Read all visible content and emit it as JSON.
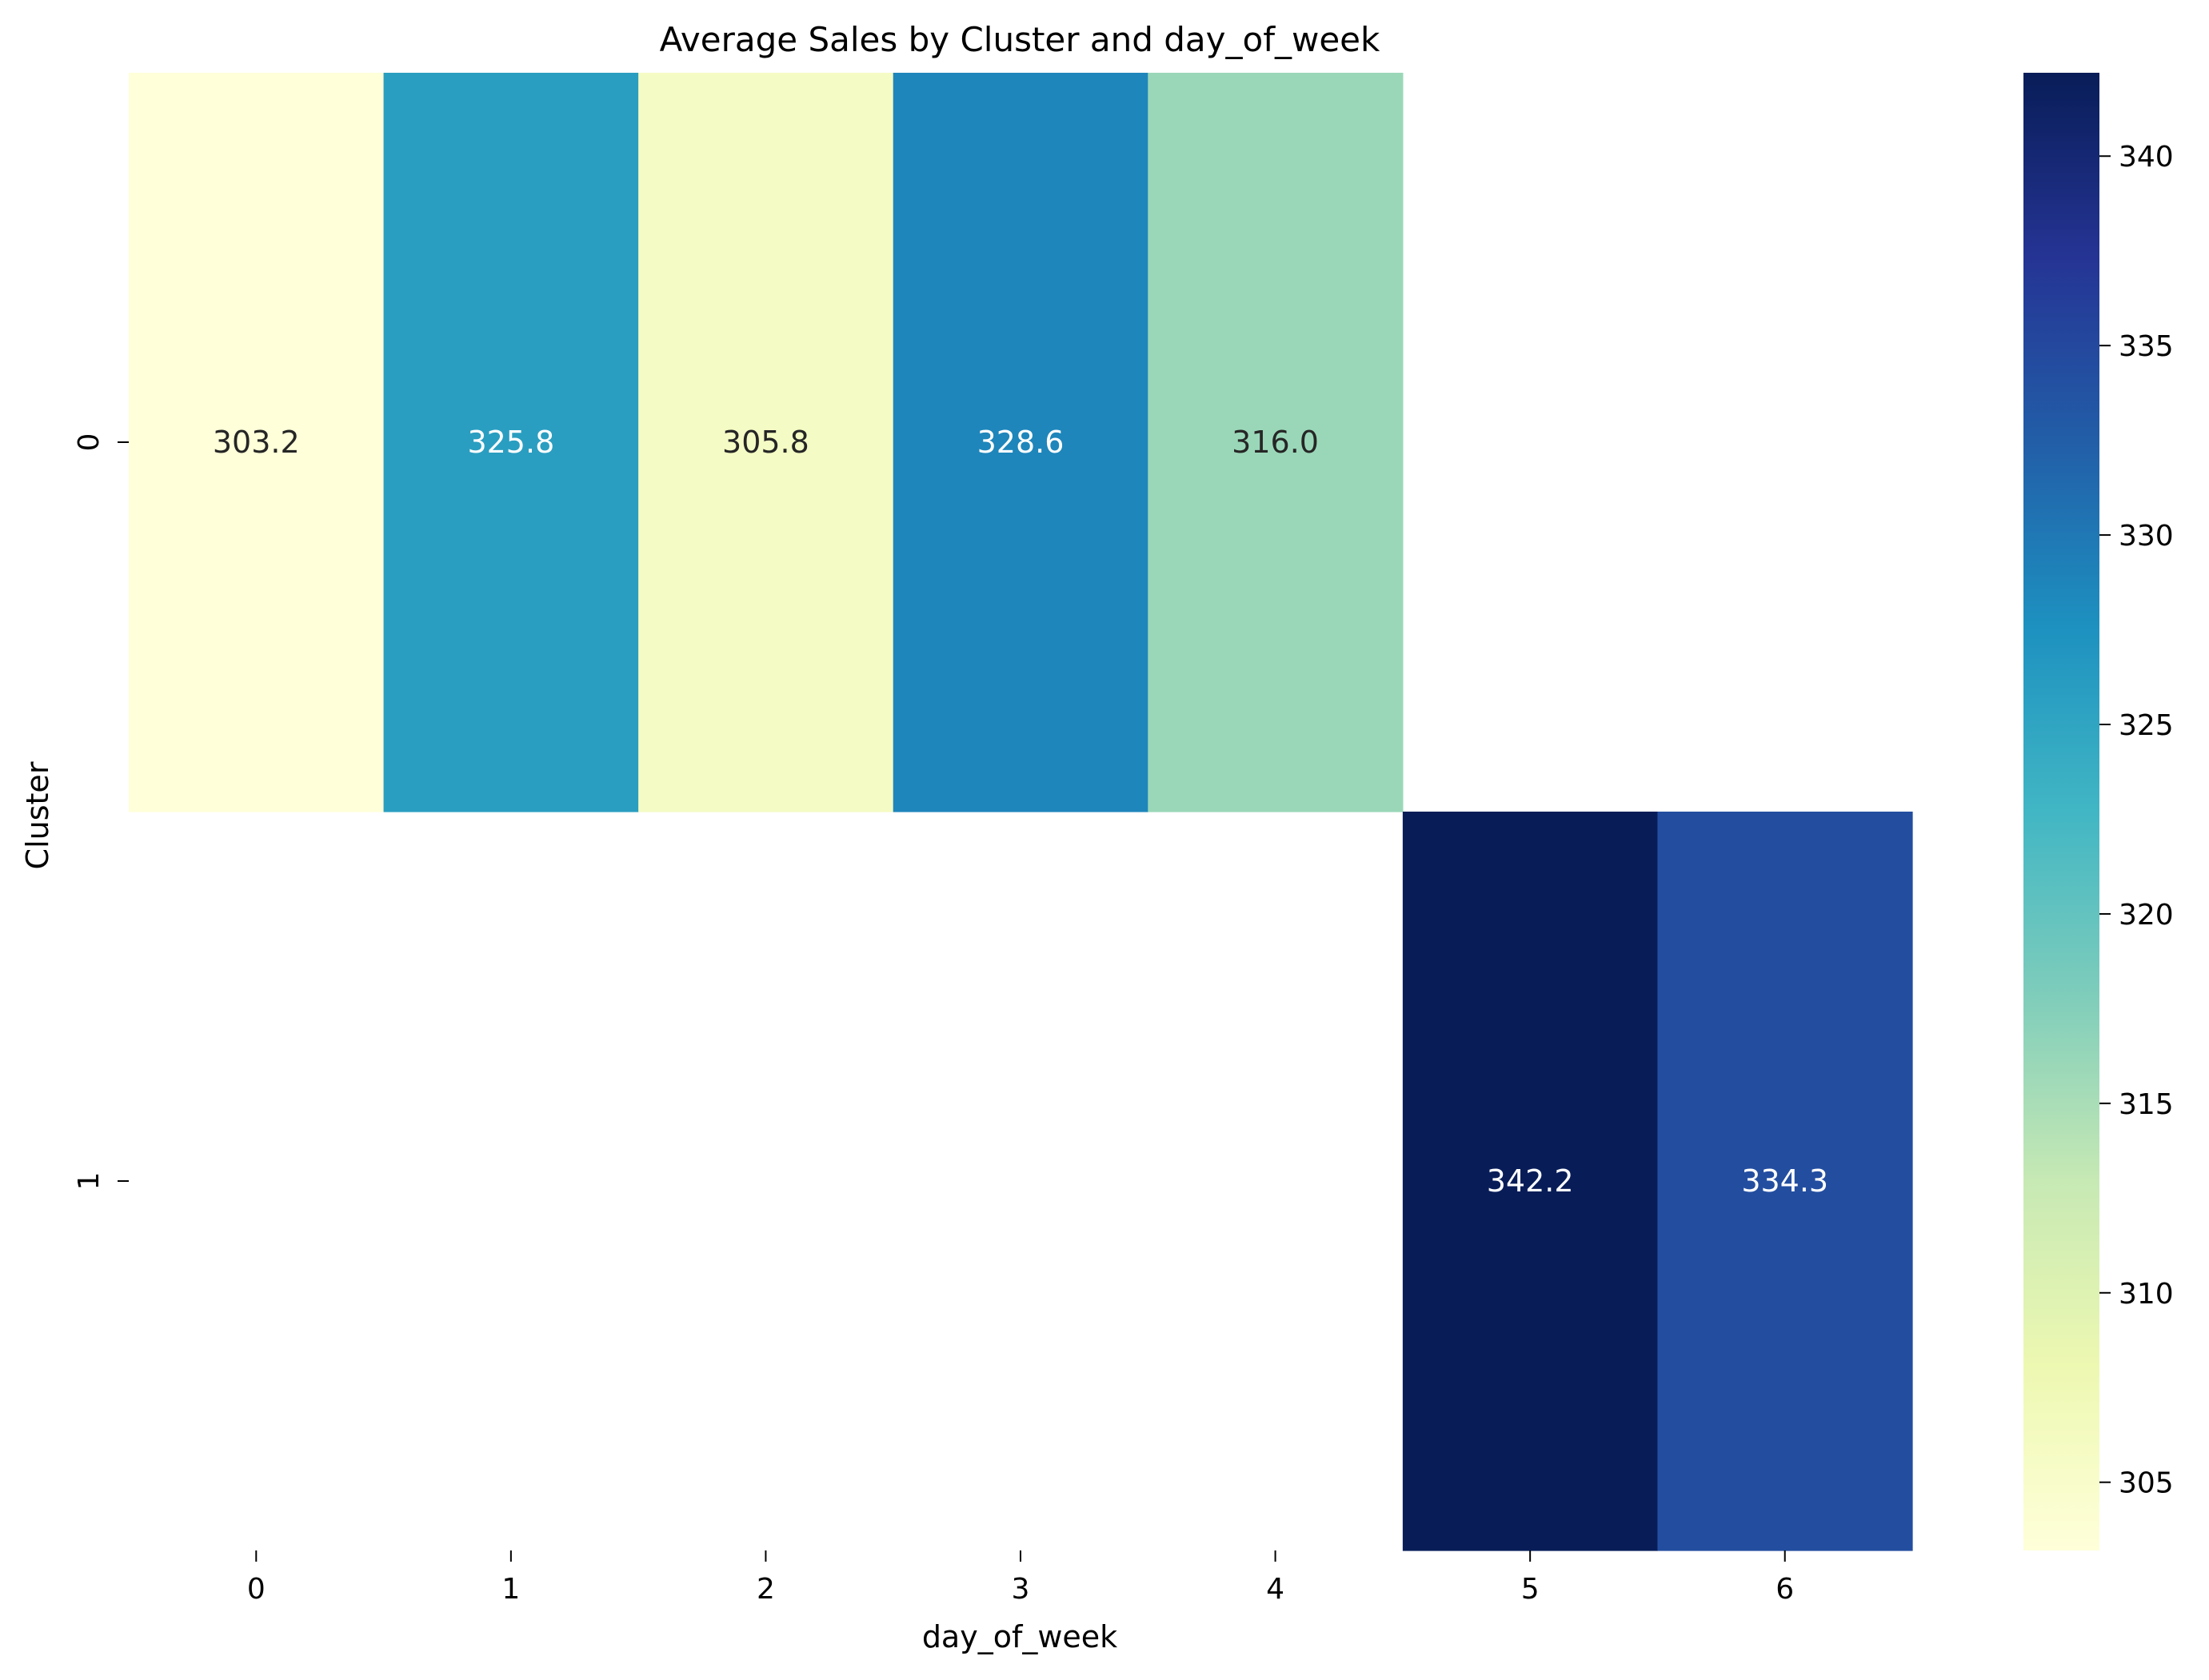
{
  "chart_data": {
    "type": "heatmap",
    "title": "Average Sales by Cluster and day_of_week",
    "xlabel": "day_of_week",
    "ylabel": "Cluster",
    "x_categories": [
      "0",
      "1",
      "2",
      "3",
      "4",
      "5",
      "6"
    ],
    "y_categories": [
      "0",
      "1"
    ],
    "cells": [
      {
        "row": "0",
        "col": "0",
        "value": 303.2,
        "label": "303.2"
      },
      {
        "row": "0",
        "col": "1",
        "value": 325.8,
        "label": "325.8"
      },
      {
        "row": "0",
        "col": "2",
        "value": 305.8,
        "label": "305.8"
      },
      {
        "row": "0",
        "col": "3",
        "value": 328.6,
        "label": "328.6"
      },
      {
        "row": "0",
        "col": "4",
        "value": 316.0,
        "label": "316.0"
      },
      {
        "row": "1",
        "col": "5",
        "value": 342.2,
        "label": "342.2"
      },
      {
        "row": "1",
        "col": "6",
        "value": 334.3,
        "label": "334.3"
      }
    ],
    "colorbar": {
      "colormap": "YlGnBu",
      "vmin": 303.2,
      "vmax": 342.2,
      "ticks": [
        305,
        310,
        315,
        320,
        325,
        330,
        335,
        340
      ],
      "tick_labels": [
        "305",
        "310",
        "315",
        "320",
        "325",
        "330",
        "335",
        "340"
      ]
    },
    "colormap_stops": [
      "#ffffd9",
      "#edf8b1",
      "#c7e9b4",
      "#7fcdbb",
      "#41b6c4",
      "#1d91c0",
      "#225ea8",
      "#253494",
      "#081d58"
    ],
    "text_colors": {
      "dark": "#262626",
      "light": "#ffffff"
    }
  }
}
